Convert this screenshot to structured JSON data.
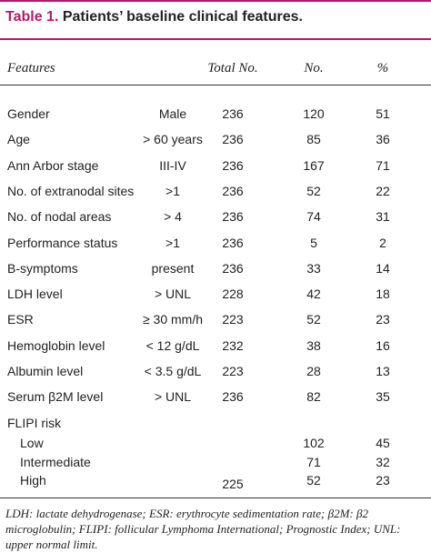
{
  "header": {
    "label": "Table 1.",
    "title": "Patients’ baseline clinical features."
  },
  "table": {
    "columns": [
      "Features",
      "Total No.",
      "No.",
      "%"
    ],
    "rows": [
      [
        "Gender",
        "Male",
        236,
        120,
        51
      ],
      [
        "Age",
        "> 60 years",
        236,
        85,
        36
      ],
      [
        "Ann Arbor stage",
        "III-IV",
        236,
        167,
        71
      ],
      [
        "No. of extranodal sites",
        ">1",
        236,
        52,
        22
      ],
      [
        "No. of nodal areas",
        "> 4",
        236,
        74,
        31
      ],
      [
        "Performance status",
        ">1",
        236,
        5,
        2
      ],
      [
        "B-symptoms",
        "present",
        236,
        33,
        14
      ],
      [
        "LDH level",
        "> UNL",
        228,
        42,
        18
      ],
      [
        "ESR",
        "≥ 30 mm/h",
        223,
        52,
        23
      ],
      [
        "Hemoglobin level",
        "< 12 g/dL",
        232,
        38,
        16
      ],
      [
        "Albumin level",
        "< 3.5 g/dL",
        223,
        28,
        13
      ],
      [
        "Serum β2M level",
        "> UNL",
        236,
        82,
        35
      ]
    ],
    "group": {
      "label": "FLIPI risk",
      "total": 225,
      "rows": [
        [
          "Low",
          102,
          45
        ],
        [
          "Intermediate",
          71,
          32
        ],
        [
          "High",
          52,
          23
        ]
      ]
    }
  },
  "footnote": "LDH: lactate dehydrogenase; ESR: erythrocyte sedimentation rate; β2M: β2 microglobulin; FLIPI: follicular Lymphoma International; Prognostic Index; UNL: upper normal limit."
}
